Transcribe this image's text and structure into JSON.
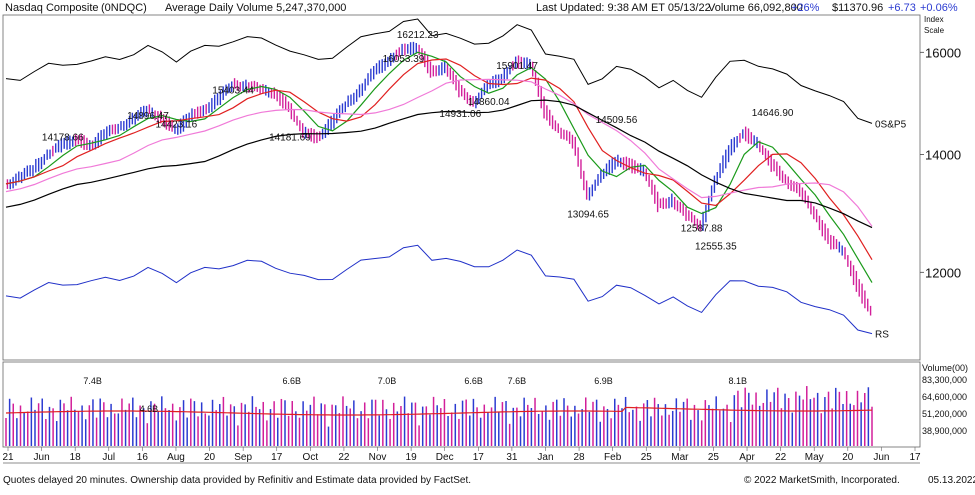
{
  "header": {
    "title": "Nasdaq Composite",
    "symbol": "(0NDQC)",
    "avg_volume": "Average Daily Volume 5,247,370,000",
    "last_updated": "Last Updated: 9:38 AM ET 05/13/22",
    "volume": "Volume 66,092,800",
    "volume_change": "+26%",
    "price": "$11370.96",
    "change": "+6.73",
    "change_pct": "+0.06%",
    "index_scale": "Index Scale"
  },
  "colors": {
    "up": "#2b3bd1",
    "down": "#d21f9a",
    "ma10": "#1a9a1a",
    "ma21": "#e02020",
    "ma50": "#000000",
    "ma200_pink": "#f07ad8",
    "sp_line": "#000000",
    "rs_line": "#2030c8",
    "vol_avg": "#e02020",
    "positive": "#2b3bd1"
  },
  "chart_data": {
    "type": "line",
    "title": "Nasdaq Composite",
    "price_axis": {
      "ticks": [
        12000,
        14000,
        16000
      ],
      "scale": "log"
    },
    "volume_axis": {
      "label": "Volume(00)",
      "ticks": [
        "83,300,000",
        "64,600,000",
        "51,200,000",
        "38,900,000"
      ]
    },
    "series_labels": {
      "sp": "0S&P5",
      "rs": "RS"
    },
    "x_labels": [
      "21",
      "Jun",
      "18",
      "Jul",
      "16",
      "Aug",
      "20",
      "Sep",
      "17",
      "Oct",
      "22",
      "Nov",
      "19",
      "Dec",
      "17",
      "31",
      "Jan",
      "28",
      "Feb",
      "25",
      "Mar",
      "25",
      "Apr",
      "22",
      "May",
      "20",
      "Jun",
      "17"
    ],
    "price_annotations": [
      {
        "label": "14178.66",
        "value": 14178.66
      },
      {
        "label": "14896.47",
        "value": 14896.47
      },
      {
        "label": "14423.16",
        "value": 14423.16
      },
      {
        "label": "15403.44",
        "value": 15403.44
      },
      {
        "label": "14181.69",
        "value": 14181.69
      },
      {
        "label": "16053.39",
        "value": 16053.39
      },
      {
        "label": "16212.23",
        "value": 16212.23
      },
      {
        "label": "14931.06",
        "value": 14931.06
      },
      {
        "label": "14860.04",
        "value": 14860.04
      },
      {
        "label": "15901.47",
        "value": 15901.47
      },
      {
        "label": "14509.56",
        "value": 14509.56
      },
      {
        "label": "13094.65",
        "value": 13094.65
      },
      {
        "label": "12587.88",
        "value": 12587.88
      },
      {
        "label": "12555.35",
        "value": 12555.35
      },
      {
        "label": "14646.90",
        "value": 14646.9
      }
    ],
    "volume_annotations": [
      "7.4B",
      "4.6B",
      "6.6B",
      "7.0B",
      "6.6B",
      "7.6B",
      "6.9B",
      "8.1B"
    ],
    "weekly_close": [
      13470,
      13570,
      13750,
      14010,
      14180,
      14280,
      14160,
      14370,
      14520,
      14660,
      14840,
      14690,
      14430,
      14730,
      14840,
      15050,
      15350,
      15320,
      15230,
      15180,
      14850,
      14410,
      14310,
      14600,
      14950,
      15240,
      15600,
      15850,
      16050,
      16100,
      15600,
      15700,
      15200,
      15000,
      15300,
      15500,
      15800,
      15750,
      14800,
      14450,
      14200,
      13300,
      13600,
      13900,
      13800,
      13700,
      13100,
      13200,
      12900,
      12780,
      13500,
      14100,
      14400,
      14200,
      13800,
      13550,
      13300,
      12980,
      12500,
      12350,
      11800,
      11370
    ]
  },
  "footer": {
    "left": "Quotes delayed 20 minutes. Ownership data provided by Refinitiv and Estimate data provided by FactSet.",
    "copyright": "© 2022 MarketSmith, Incorporated.",
    "date": "05.13.2022"
  }
}
